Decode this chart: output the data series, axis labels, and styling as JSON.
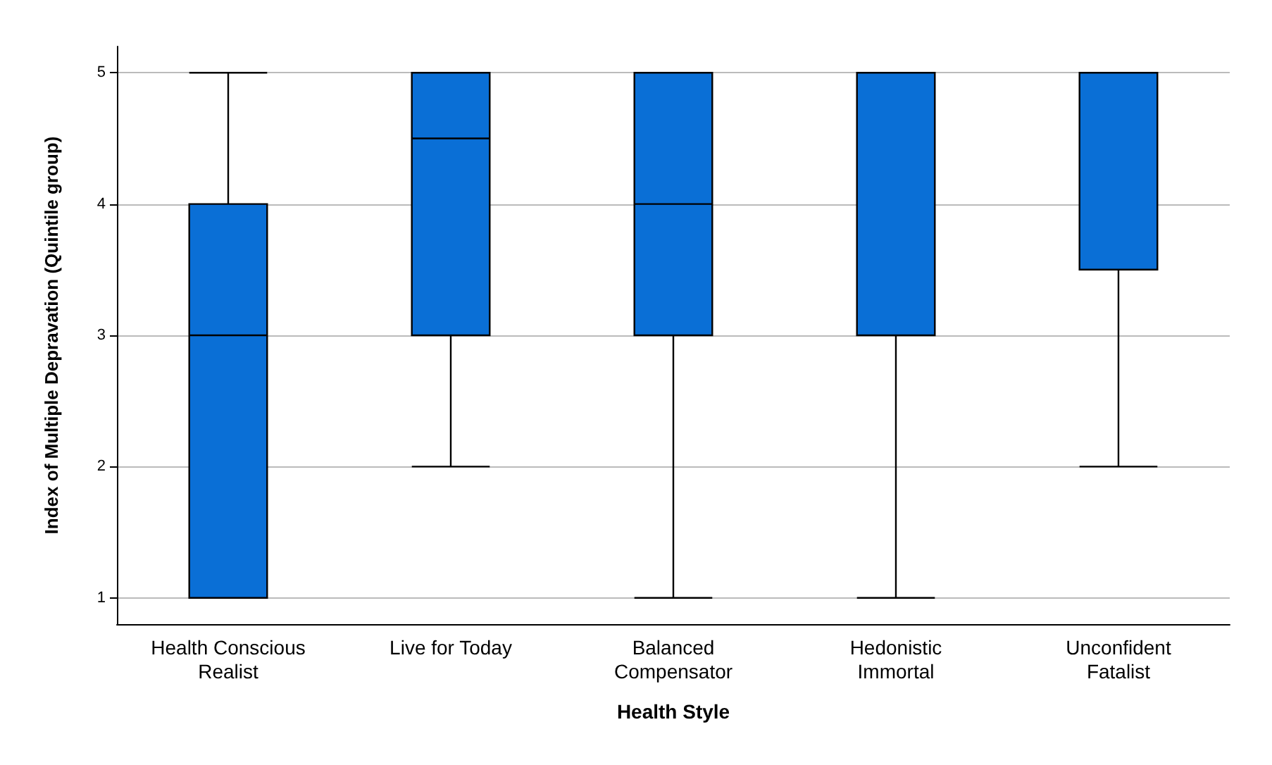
{
  "chart_data": {
    "type": "box",
    "xlabel": "Health Style",
    "ylabel": "Index of Multiple Depravation (Quintile group)",
    "categories": [
      "Health Conscious\nRealist",
      "Live for Today",
      "Balanced\nCompensator",
      "Hedonistic\nImmortal",
      "Unconfident\nFatalist"
    ],
    "boxes": [
      {
        "low": 1,
        "q1": 1,
        "median": 3,
        "q3": 4,
        "high": 5
      },
      {
        "low": 2,
        "q1": 3,
        "median": 4.5,
        "q3": 5,
        "high": 5
      },
      {
        "low": 1,
        "q1": 3,
        "median": 4,
        "q3": 5,
        "high": 5
      },
      {
        "low": 1,
        "q1": 3,
        "median": 3,
        "q3": 5,
        "high": 5
      },
      {
        "low": 2,
        "q1": 3.5,
        "median": 5,
        "q3": 5,
        "high": 5
      }
    ],
    "color": "#0a6fd6",
    "ylim": [
      0.8,
      5.2
    ],
    "yticks": [
      1,
      2,
      3,
      4,
      5
    ],
    "grid": "y"
  }
}
